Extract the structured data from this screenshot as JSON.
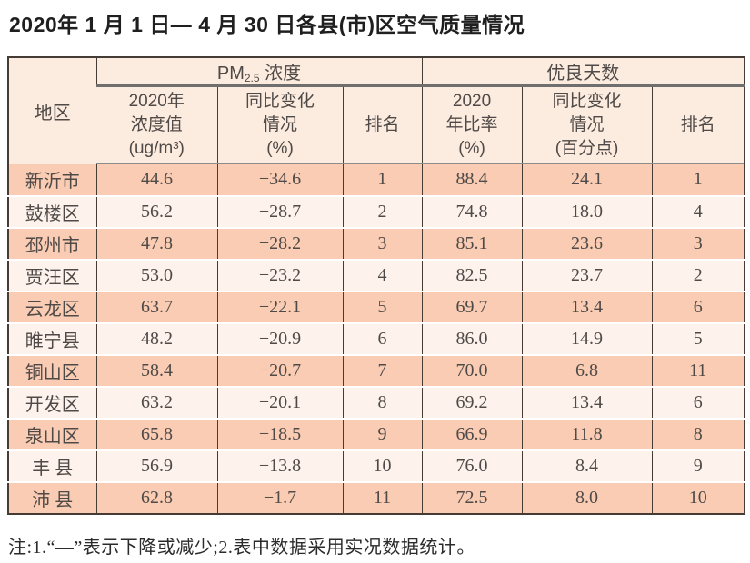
{
  "title": "2020年 1 月 1 日— 4 月 30 日各县(市)区空气质量情况",
  "table": {
    "header": {
      "region": "地区",
      "pm25_group": {
        "prefix": "PM",
        "sub": "2.5",
        "suffix": " 浓度"
      },
      "good_days_group": "优良天数",
      "pm25_value": "2020年\n浓度值\n(ug/m³)",
      "pm25_change": "同比变化\n情况\n(%)",
      "pm25_rank": "排名",
      "good_rate": "2020\n年比率\n(%)",
      "good_change": "同比变化\n情况\n(百分点)",
      "good_rank": "排名"
    },
    "rows": [
      {
        "region": "新沂市",
        "pm25_value": "44.6",
        "pm25_change": "−34.6",
        "pm25_rank": "1",
        "good_rate": "88.4",
        "good_change": "24.1",
        "good_rank": "1"
      },
      {
        "region": "鼓楼区",
        "pm25_value": "56.2",
        "pm25_change": "−28.7",
        "pm25_rank": "2",
        "good_rate": "74.8",
        "good_change": "18.0",
        "good_rank": "4"
      },
      {
        "region": "邳州市",
        "pm25_value": "47.8",
        "pm25_change": "−28.2",
        "pm25_rank": "3",
        "good_rate": "85.1",
        "good_change": "23.6",
        "good_rank": "3"
      },
      {
        "region": "贾汪区",
        "pm25_value": "53.0",
        "pm25_change": "−23.2",
        "pm25_rank": "4",
        "good_rate": "82.5",
        "good_change": "23.7",
        "good_rank": "2"
      },
      {
        "region": "云龙区",
        "pm25_value": "63.7",
        "pm25_change": "−22.1",
        "pm25_rank": "5",
        "good_rate": "69.7",
        "good_change": "13.4",
        "good_rank": "6"
      },
      {
        "region": "睢宁县",
        "pm25_value": "48.2",
        "pm25_change": "−20.9",
        "pm25_rank": "6",
        "good_rate": "86.0",
        "good_change": "14.9",
        "good_rank": "5"
      },
      {
        "region": "铜山区",
        "pm25_value": "58.4",
        "pm25_change": "−20.7",
        "pm25_rank": "7",
        "good_rate": "70.0",
        "good_change": "6.8",
        "good_rank": "11"
      },
      {
        "region": "开发区",
        "pm25_value": "63.2",
        "pm25_change": "−20.1",
        "pm25_rank": "8",
        "good_rate": "69.2",
        "good_change": "13.4",
        "good_rank": "6"
      },
      {
        "region": "泉山区",
        "pm25_value": "65.8",
        "pm25_change": "−18.5",
        "pm25_rank": "9",
        "good_rate": "66.9",
        "good_change": "11.8",
        "good_rank": "8"
      },
      {
        "region": "丰 县",
        "pm25_value": "56.9",
        "pm25_change": "−13.8",
        "pm25_rank": "10",
        "good_rate": "76.0",
        "good_change": "8.4",
        "good_rank": "9"
      },
      {
        "region": "沛 县",
        "pm25_value": "62.8",
        "pm25_change": "−1.7",
        "pm25_rank": "11",
        "good_rate": "72.5",
        "good_change": "8.0",
        "good_rank": "10"
      }
    ]
  },
  "note": "注:1.“—”表示下降或减少;2.表中数据采用实况数据统计。",
  "colors": {
    "row_odd": "#f9ccb3",
    "row_even": "#fdf3ec",
    "header_bg": "#fcebdf",
    "border_dark": "#463c36",
    "thick_rule": "#6f6f6f",
    "text": "#4f4a47"
  }
}
